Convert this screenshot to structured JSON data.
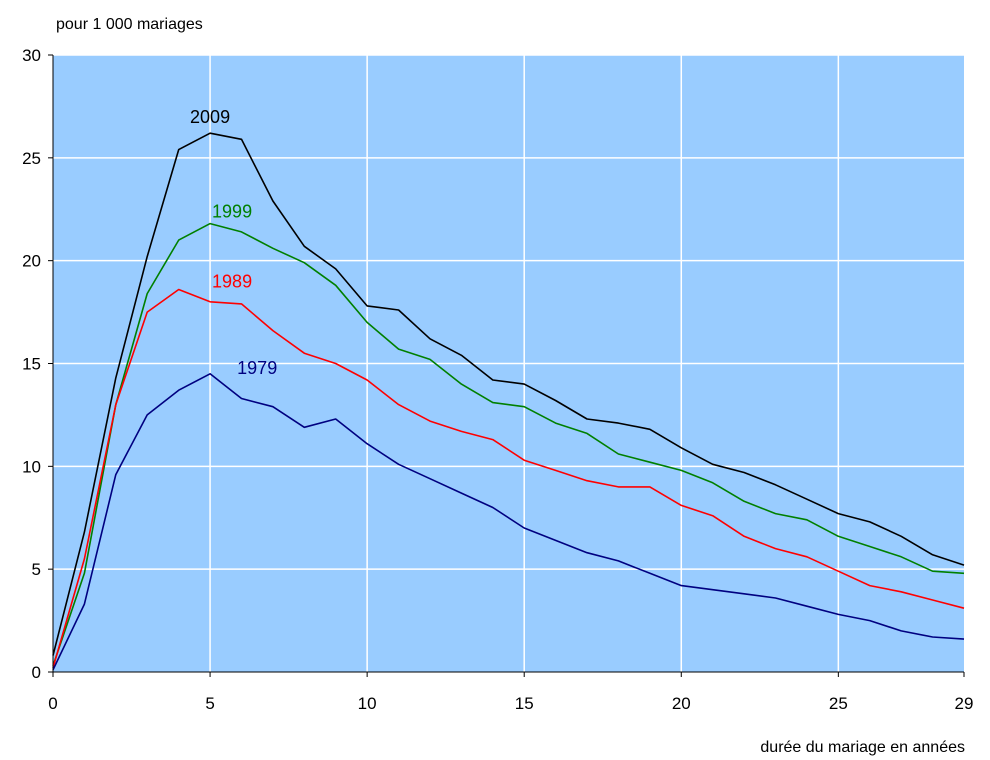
{
  "chart_data": {
    "type": "line",
    "title": "",
    "ylabel": "pour 1 000 mariages",
    "xlabel": "durée du mariage en années",
    "xlim": [
      0,
      29
    ],
    "ylim": [
      0,
      30
    ],
    "x_ticks": [
      0,
      5,
      10,
      15,
      20,
      25,
      29
    ],
    "y_ticks": [
      0,
      5,
      10,
      15,
      20,
      25,
      30
    ],
    "grid": true,
    "plot_background": "#99ccff",
    "grid_color": "#ffffff",
    "x": [
      0,
      1,
      2,
      3,
      4,
      5,
      6,
      7,
      8,
      9,
      10,
      11,
      12,
      13,
      14,
      15,
      16,
      17,
      18,
      19,
      20,
      21,
      22,
      23,
      24,
      25,
      26,
      27,
      28,
      29
    ],
    "series": [
      {
        "name": "2009",
        "color": "#000000",
        "label_at": [
          5,
          26.7
        ],
        "values": [
          0.8,
          6.8,
          14.3,
          20.2,
          25.4,
          26.2,
          25.9,
          22.9,
          20.7,
          19.6,
          17.8,
          17.6,
          16.2,
          15.4,
          14.2,
          14.0,
          13.2,
          12.3,
          12.1,
          11.8,
          10.9,
          10.1,
          9.7,
          9.1,
          8.4,
          7.7,
          7.3,
          6.6,
          5.7,
          5.2
        ]
      },
      {
        "name": "1999",
        "color": "#008000",
        "label_at": [
          5.7,
          22.1
        ],
        "values": [
          0.3,
          4.8,
          13.0,
          18.4,
          21.0,
          21.8,
          21.4,
          20.6,
          19.9,
          18.8,
          17.0,
          15.7,
          15.2,
          14.0,
          13.1,
          12.9,
          12.1,
          11.6,
          10.6,
          10.2,
          9.8,
          9.2,
          8.3,
          7.7,
          7.4,
          6.6,
          6.1,
          5.6,
          4.9,
          4.8
        ]
      },
      {
        "name": "1989",
        "color": "#ff0000",
        "label_at": [
          5.7,
          18.7
        ],
        "values": [
          0.2,
          5.5,
          13.0,
          17.5,
          18.6,
          18.0,
          17.9,
          16.6,
          15.5,
          15.0,
          14.2,
          13.0,
          12.2,
          11.7,
          11.3,
          10.3,
          9.8,
          9.3,
          9.0,
          9.0,
          8.1,
          7.6,
          6.6,
          6.0,
          5.6,
          4.9,
          4.2,
          3.9,
          3.5,
          3.1
        ]
      },
      {
        "name": "1979",
        "color": "#000080",
        "label_at": [
          6.5,
          14.5
        ],
        "values": [
          0.1,
          3.3,
          9.6,
          12.5,
          13.7,
          14.5,
          13.3,
          12.9,
          11.9,
          12.3,
          11.1,
          10.1,
          9.4,
          8.7,
          8.0,
          7.0,
          6.4,
          5.8,
          5.4,
          4.8,
          4.2,
          4.0,
          3.8,
          3.6,
          3.2,
          2.8,
          2.5,
          2.0,
          1.7,
          1.6
        ]
      }
    ]
  }
}
